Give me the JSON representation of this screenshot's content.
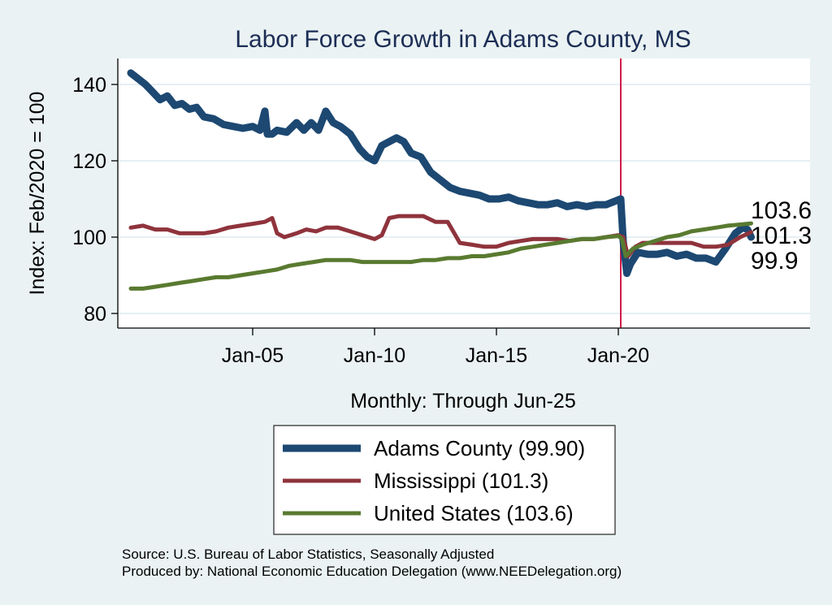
{
  "chart_data": {
    "type": "line",
    "title": "Labor Force Growth in Adams  County, MS",
    "xlabel": "Monthly: Through Jun-25",
    "ylabel": "Index: Feb/2020 = 100",
    "ylim": [
      77,
      147
    ],
    "xlim": [
      1999.5,
      2027.9
    ],
    "yticks": [
      80,
      100,
      120,
      140
    ],
    "xticks": [
      {
        "x": 2005,
        "label": "Jan-05"
      },
      {
        "x": 2010,
        "label": "Jan-10"
      },
      {
        "x": 2015,
        "label": "Jan-15"
      },
      {
        "x": 2020,
        "label": "Jan-20"
      }
    ],
    "grid": true,
    "reference_line": {
      "x": 2020.1,
      "color": "#d01c4b"
    },
    "series": [
      {
        "name": "Adams  County",
        "legend": "Adams  County (99.90)",
        "end_label": "99.9",
        "color": "#1c4872",
        "x": [
          2000.0,
          2000.3,
          2000.6,
          2000.9,
          2001.2,
          2001.5,
          2001.8,
          2002.1,
          2002.4,
          2002.7,
          2003.0,
          2003.4,
          2003.8,
          2004.2,
          2004.6,
          2005.0,
          2005.3,
          2005.5,
          2005.6,
          2005.8,
          2006.0,
          2006.4,
          2006.8,
          2007.1,
          2007.4,
          2007.7,
          2008.0,
          2008.3,
          2008.6,
          2009.0,
          2009.4,
          2009.7,
          2010.0,
          2010.3,
          2010.6,
          2010.9,
          2011.2,
          2011.5,
          2011.9,
          2012.3,
          2012.7,
          2013.1,
          2013.5,
          2013.9,
          2014.3,
          2014.7,
          2015.1,
          2015.5,
          2015.9,
          2016.3,
          2016.7,
          2017.1,
          2017.5,
          2017.9,
          2018.3,
          2018.7,
          2019.1,
          2019.5,
          2019.9,
          2020.1,
          2020.2,
          2020.35,
          2020.5,
          2020.8,
          2021.2,
          2021.6,
          2022.0,
          2022.4,
          2022.8,
          2023.2,
          2023.6,
          2024.0,
          2024.4,
          2024.8,
          2025.1,
          2025.3,
          2025.45
        ],
        "y": [
          143,
          141.5,
          140,
          138,
          136,
          137,
          134.5,
          135,
          133.5,
          134,
          131.5,
          131,
          129.5,
          129,
          128.5,
          129,
          128,
          133,
          127,
          127,
          128,
          127.5,
          130,
          128,
          130,
          128,
          133,
          130,
          129,
          127,
          123,
          121,
          120,
          124,
          125,
          126,
          125,
          122,
          121,
          117,
          115,
          113,
          112,
          111.5,
          111,
          110,
          110,
          110.5,
          109.5,
          109,
          108.5,
          108.5,
          109,
          108,
          108.5,
          108,
          108.5,
          108.5,
          109.5,
          110,
          99,
          90.5,
          93,
          96,
          95.5,
          95.5,
          96,
          95,
          95.5,
          94.5,
          94.5,
          93.5,
          97,
          101,
          102.5,
          102,
          100
        ]
      },
      {
        "name": "Mississippi",
        "legend": "Mississippi (101.3)",
        "end_label": "101.3",
        "color": "#8f333c",
        "x": [
          2000.0,
          2000.5,
          2001.0,
          2001.5,
          2002.0,
          2002.5,
          2003.0,
          2003.5,
          2004.0,
          2004.5,
          2005.0,
          2005.5,
          2005.8,
          2006.0,
          2006.3,
          2006.8,
          2007.2,
          2007.6,
          2008.0,
          2008.5,
          2009.0,
          2009.5,
          2010.0,
          2010.3,
          2010.6,
          2011.0,
          2011.5,
          2012.0,
          2012.5,
          2013.0,
          2013.5,
          2014.0,
          2014.5,
          2015.0,
          2015.5,
          2016.0,
          2016.5,
          2017.0,
          2017.5,
          2018.0,
          2018.5,
          2019.0,
          2019.5,
          2020.0,
          2020.2,
          2020.4,
          2020.7,
          2021.0,
          2021.5,
          2022.0,
          2022.5,
          2023.0,
          2023.5,
          2024.0,
          2024.5,
          2025.0,
          2025.45
        ],
        "y": [
          102.5,
          103,
          102,
          102,
          101,
          101,
          101,
          101.5,
          102.5,
          103,
          103.5,
          104,
          105,
          101,
          100,
          101,
          102,
          101.5,
          102.5,
          102.5,
          101.5,
          100.5,
          99.5,
          100.5,
          105,
          105.5,
          105.5,
          105.5,
          104,
          104,
          98.5,
          98,
          97.5,
          97.5,
          98.5,
          99,
          99.5,
          99.5,
          99.5,
          99,
          99.5,
          99.5,
          100,
          100.5,
          100,
          95,
          97.5,
          98.5,
          98.5,
          98.5,
          98.5,
          98.5,
          97.5,
          97.5,
          98,
          100,
          101.3
        ]
      },
      {
        "name": "United States",
        "legend": "United States (103.6)",
        "end_label": "103.6",
        "color": "#597a30",
        "x": [
          2000.0,
          2000.5,
          2001.0,
          2001.5,
          2002.0,
          2002.5,
          2003.0,
          2003.5,
          2004.0,
          2004.5,
          2005.0,
          2005.5,
          2006.0,
          2006.5,
          2007.0,
          2007.5,
          2008.0,
          2008.5,
          2009.0,
          2009.5,
          2010.0,
          2010.5,
          2011.0,
          2011.5,
          2012.0,
          2012.5,
          2013.0,
          2013.5,
          2014.0,
          2014.5,
          2015.0,
          2015.5,
          2016.0,
          2016.5,
          2017.0,
          2017.5,
          2018.0,
          2018.5,
          2019.0,
          2019.5,
          2020.0,
          2020.15,
          2020.3,
          2020.6,
          2021.0,
          2021.5,
          2022.0,
          2022.5,
          2023.0,
          2023.5,
          2024.0,
          2024.5,
          2025.0,
          2025.45
        ],
        "y": [
          86.5,
          86.5,
          87,
          87.5,
          88,
          88.5,
          89,
          89.5,
          89.5,
          90,
          90.5,
          91,
          91.5,
          92.5,
          93,
          93.5,
          94,
          94,
          94,
          93.5,
          93.5,
          93.5,
          93.5,
          93.5,
          94,
          94,
          94.5,
          94.5,
          95,
          95,
          95.5,
          96,
          97,
          97.5,
          98,
          98.5,
          99,
          99.5,
          99.5,
          100,
          100.3,
          99.5,
          95,
          97,
          98,
          99,
          100,
          100.5,
          101.5,
          102,
          102.5,
          103,
          103.3,
          103.6
        ]
      }
    ]
  },
  "notes": {
    "source": "Source: U.S. Bureau of Labor Statistics, Seasonally Adjusted",
    "produced_by": "Produced by: National Economic Education Delegation (www.NEEDelegation.org)"
  }
}
